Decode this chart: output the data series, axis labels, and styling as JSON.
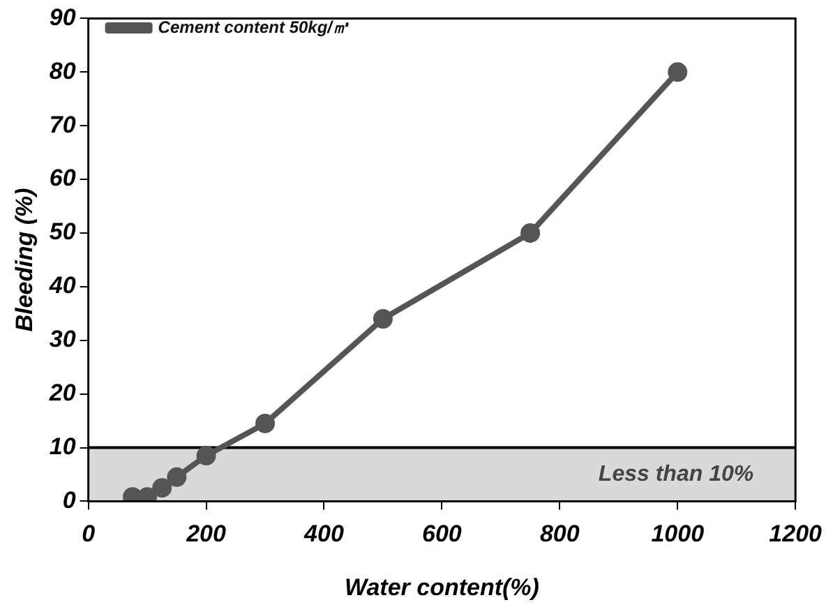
{
  "chart_data": {
    "type": "line",
    "xlabel": "Water content(%)",
    "ylabel": "Bleeding (%)",
    "x": [
      75,
      100,
      125,
      150,
      200,
      300,
      500,
      750,
      1000
    ],
    "series": [
      {
        "name": "Cement content 50kg/㎥",
        "color": "#555555",
        "values": [
          0.8,
          0.8,
          2.5,
          4.5,
          8.5,
          14.5,
          34,
          50,
          80
        ]
      }
    ],
    "xlim": [
      0,
      1200
    ],
    "xticks": [
      0,
      200,
      400,
      600,
      800,
      1000,
      1200
    ],
    "ylim": [
      0,
      90
    ],
    "yticks": [
      0,
      10,
      20,
      30,
      40,
      50,
      60,
      70,
      80,
      90
    ],
    "grid": false,
    "legend": "top left",
    "marker": "circle",
    "line_style": "solid",
    "ref_lines": [
      {
        "axis": "y",
        "value": 10,
        "color": "#000000"
      }
    ],
    "bands": [
      {
        "axis": "y",
        "from": 0,
        "to": 10,
        "label": "Less than 10%",
        "color": "#d9d9d9"
      }
    ]
  }
}
